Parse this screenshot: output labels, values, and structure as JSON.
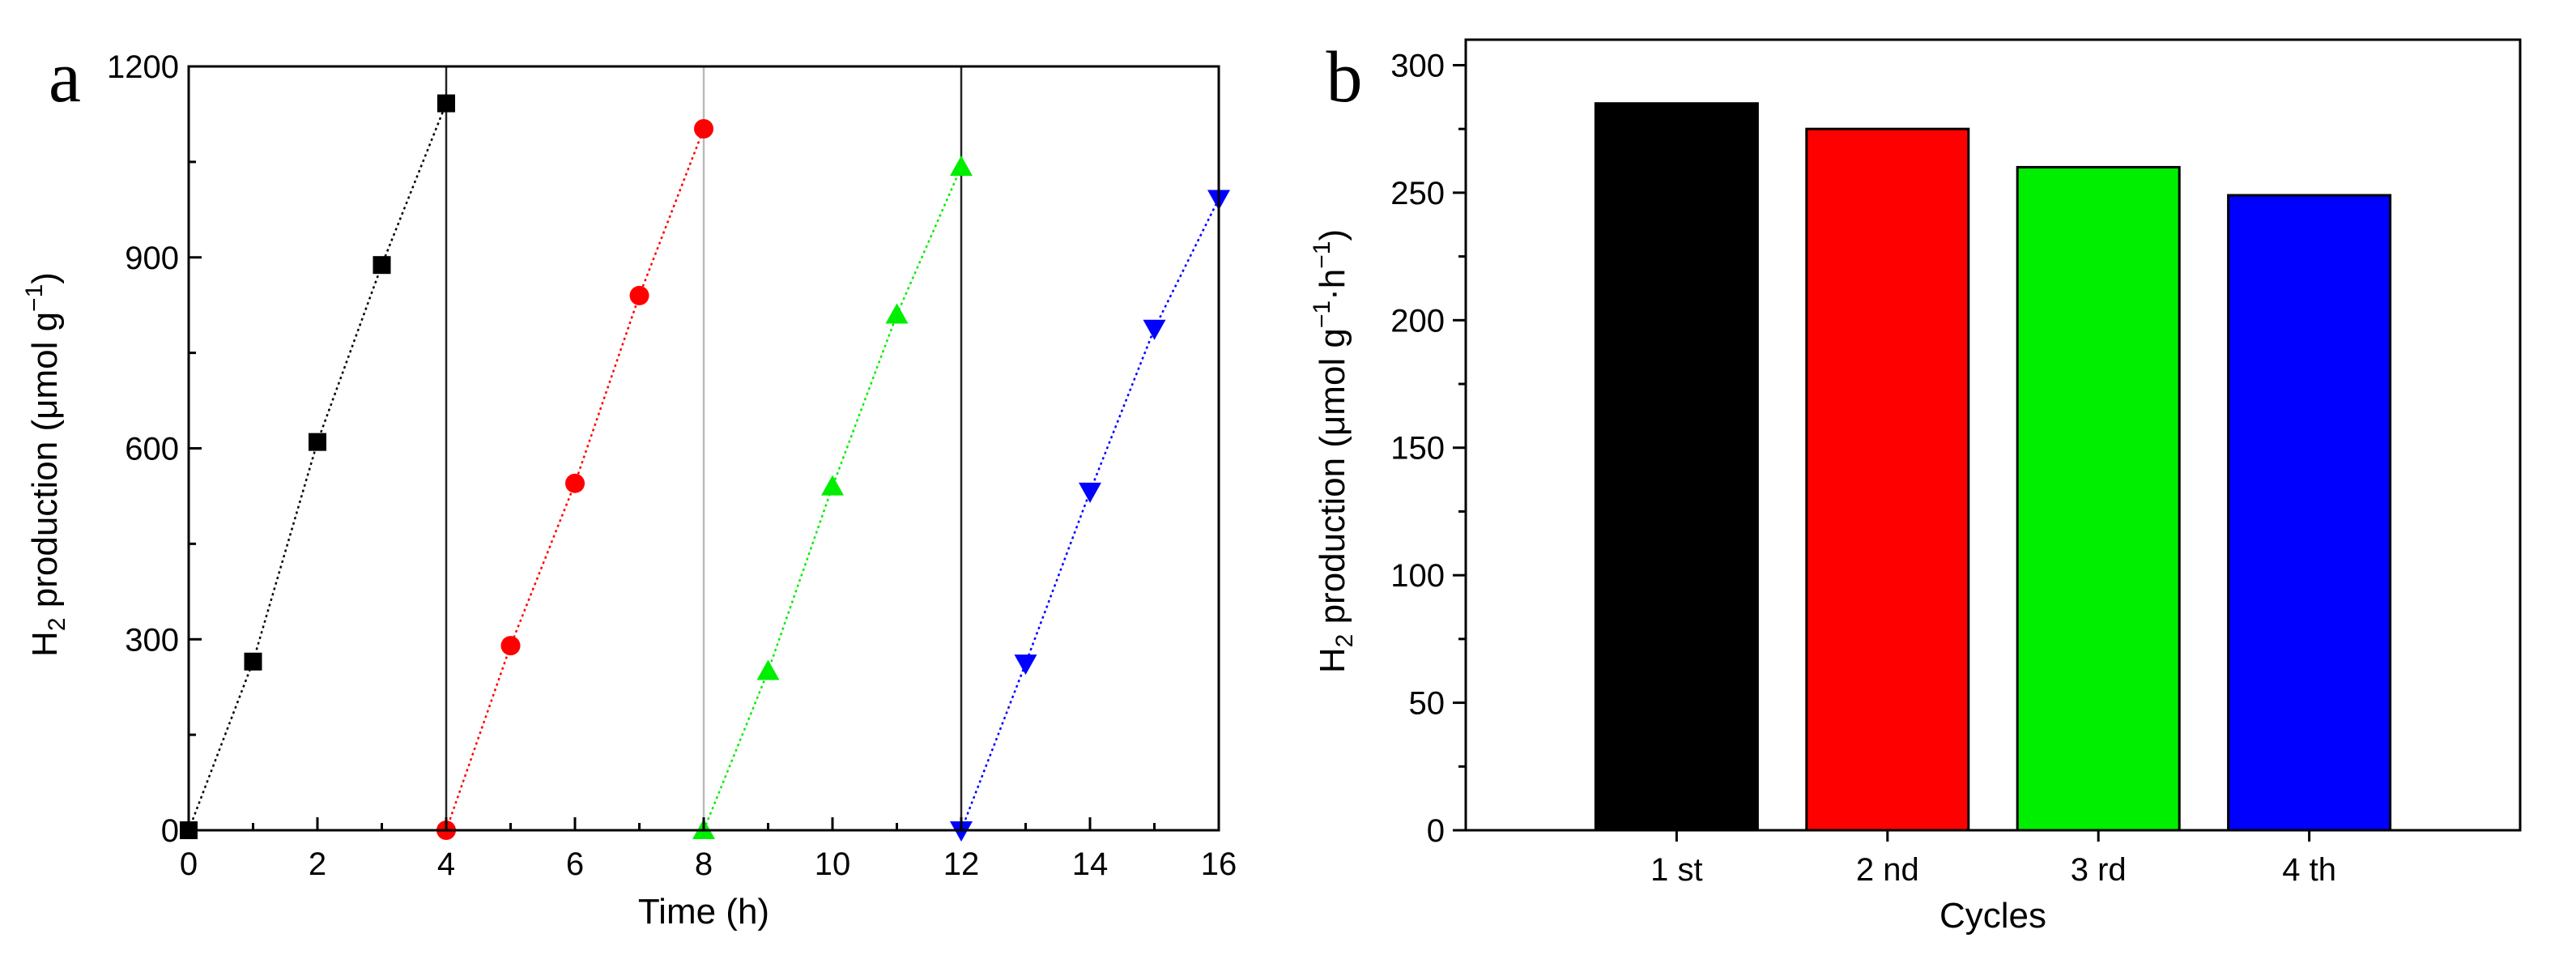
{
  "chart_data": [
    {
      "panel": "a",
      "type": "scatter",
      "xlabel": "Time (h)",
      "ylabel": "H2 production (μmol g−1)",
      "ylabel_parts": {
        "base": "H",
        "sub": "2",
        "rest": " production (μmol g",
        "sup": "−1",
        "close": ")"
      },
      "xlim": [
        0,
        16
      ],
      "ylim": [
        0,
        1200
      ],
      "xticks": [
        0,
        2,
        4,
        6,
        8,
        10,
        12,
        14,
        16
      ],
      "yticks": [
        0,
        300,
        600,
        900,
        1200
      ],
      "vlines": [
        4,
        8,
        12
      ],
      "grid": false,
      "series": [
        {
          "color": "#000000",
          "marker": "square",
          "x": [
            0,
            1,
            2,
            3,
            4
          ],
          "y": [
            0,
            265,
            610,
            888,
            1142
          ]
        },
        {
          "color": "#ff0000",
          "marker": "circle",
          "x": [
            4,
            5,
            6,
            7,
            8
          ],
          "y": [
            0,
            290,
            545,
            840,
            1102
          ]
        },
        {
          "color": "#00ee00",
          "marker": "triangle-up",
          "x": [
            8,
            9,
            10,
            11,
            12
          ],
          "y": [
            0,
            250,
            540,
            810,
            1042
          ]
        },
        {
          "color": "#0000ff",
          "marker": "triangle-down",
          "x": [
            12,
            13,
            14,
            15,
            16
          ],
          "y": [
            0,
            262,
            532,
            788,
            992
          ]
        }
      ]
    },
    {
      "panel": "b",
      "type": "bar",
      "xlabel": "Cycles",
      "ylabel": "H2 production (μmol g−1·h−1)",
      "ylabel_parts": {
        "base": "H",
        "sub": "2",
        "rest": " production (μmol g",
        "sup": "−1",
        "mid": "·h",
        "sup2": "−1",
        "close": ")"
      },
      "categories": [
        "1 st",
        "2 nd",
        "3 rd",
        "4 th"
      ],
      "values": [
        285,
        275,
        260,
        249
      ],
      "colors": [
        "#000000",
        "#ff0000",
        "#00ee00",
        "#0000ff"
      ],
      "ylim": [
        0,
        310
      ],
      "yticks": [
        0,
        50,
        100,
        150,
        200,
        250,
        300
      ],
      "grid": false
    }
  ]
}
